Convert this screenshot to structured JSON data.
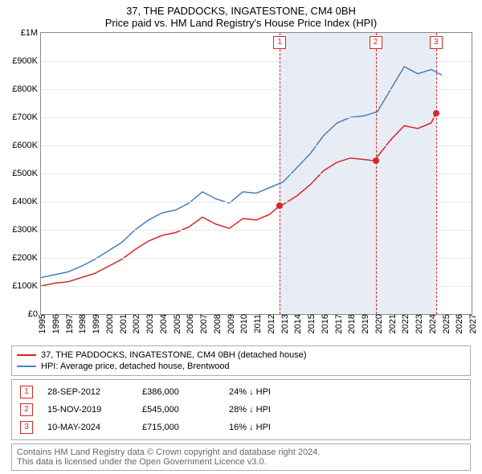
{
  "title": "37, THE PADDOCKS, INGATESTONE, CM4 0BH",
  "subtitle": "Price paid vs. HM Land Registry's House Price Index (HPI)",
  "chart": {
    "type": "line",
    "background_color": "#ffffff",
    "grid_color": "#e8e8e8",
    "border_color": "#888888",
    "shaded_region": {
      "from_year": 2012.74,
      "to_year": 2024.36,
      "color": "#e8edf5"
    },
    "x": {
      "min": 1995,
      "max": 2027,
      "ticks": [
        1995,
        1996,
        1997,
        1998,
        1999,
        2000,
        2001,
        2002,
        2003,
        2004,
        2005,
        2006,
        2007,
        2008,
        2009,
        2010,
        2011,
        2012,
        2013,
        2014,
        2015,
        2016,
        2017,
        2018,
        2019,
        2020,
        2021,
        2022,
        2023,
        2024,
        2025,
        2026,
        2027
      ],
      "fontsize": 11
    },
    "y": {
      "min": 0,
      "max": 1000000,
      "ticks": [
        0,
        100000,
        200000,
        300000,
        400000,
        500000,
        600000,
        700000,
        800000,
        900000,
        1000000
      ],
      "tick_labels": [
        "£0",
        "£100K",
        "£200K",
        "£300K",
        "£400K",
        "£500K",
        "£600K",
        "£700K",
        "£800K",
        "£900K",
        "£1M"
      ],
      "fontsize": 11
    },
    "series": {
      "property": {
        "label": "37, THE PADDOCKS, INGATESTONE, CM4 0BH (detached house)",
        "color": "#d62728",
        "line_width": 1.5,
        "data": [
          [
            1995,
            100000
          ],
          [
            1996,
            110000
          ],
          [
            1997,
            115000
          ],
          [
            1998,
            130000
          ],
          [
            1999,
            145000
          ],
          [
            2000,
            170000
          ],
          [
            2001,
            195000
          ],
          [
            2002,
            230000
          ],
          [
            2003,
            260000
          ],
          [
            2004,
            280000
          ],
          [
            2005,
            290000
          ],
          [
            2006,
            310000
          ],
          [
            2007,
            345000
          ],
          [
            2008,
            320000
          ],
          [
            2009,
            305000
          ],
          [
            2010,
            340000
          ],
          [
            2011,
            335000
          ],
          [
            2012,
            355000
          ],
          [
            2012.74,
            386000
          ],
          [
            2013,
            390000
          ],
          [
            2014,
            420000
          ],
          [
            2015,
            460000
          ],
          [
            2016,
            510000
          ],
          [
            2017,
            540000
          ],
          [
            2018,
            555000
          ],
          [
            2019,
            550000
          ],
          [
            2019.87,
            545000
          ],
          [
            2020,
            560000
          ],
          [
            2021,
            620000
          ],
          [
            2022,
            670000
          ],
          [
            2023,
            660000
          ],
          [
            2024,
            680000
          ],
          [
            2024.36,
            715000
          ]
        ]
      },
      "hpi": {
        "label": "HPI: Average price, detached house, Brentwood",
        "color": "#4a7ebb",
        "line_width": 1.5,
        "data": [
          [
            1995,
            130000
          ],
          [
            1996,
            140000
          ],
          [
            1997,
            150000
          ],
          [
            1998,
            170000
          ],
          [
            1999,
            195000
          ],
          [
            2000,
            225000
          ],
          [
            2001,
            255000
          ],
          [
            2002,
            300000
          ],
          [
            2003,
            335000
          ],
          [
            2004,
            360000
          ],
          [
            2005,
            370000
          ],
          [
            2006,
            395000
          ],
          [
            2007,
            435000
          ],
          [
            2008,
            410000
          ],
          [
            2009,
            395000
          ],
          [
            2010,
            435000
          ],
          [
            2011,
            430000
          ],
          [
            2012,
            450000
          ],
          [
            2013,
            470000
          ],
          [
            2014,
            520000
          ],
          [
            2015,
            570000
          ],
          [
            2016,
            635000
          ],
          [
            2017,
            680000
          ],
          [
            2018,
            700000
          ],
          [
            2019,
            705000
          ],
          [
            2020,
            720000
          ],
          [
            2021,
            800000
          ],
          [
            2022,
            880000
          ],
          [
            2023,
            855000
          ],
          [
            2024,
            870000
          ],
          [
            2024.8,
            850000
          ]
        ]
      }
    },
    "markers": [
      {
        "num": "1",
        "year": 2012.74,
        "value": 386000,
        "color": "#d62728"
      },
      {
        "num": "2",
        "year": 2019.87,
        "value": 545000,
        "color": "#d62728"
      },
      {
        "num": "3",
        "year": 2024.36,
        "value": 715000,
        "color": "#d62728"
      }
    ]
  },
  "sales": [
    {
      "num": "1",
      "date": "28-SEP-2012",
      "price": "£386,000",
      "hpi_diff": "24% ↓ HPI",
      "color": "#d62728"
    },
    {
      "num": "2",
      "date": "15-NOV-2019",
      "price": "£545,000",
      "hpi_diff": "28% ↓ HPI",
      "color": "#d62728"
    },
    {
      "num": "3",
      "date": "10-MAY-2024",
      "price": "£715,000",
      "hpi_diff": "16% ↓ HPI",
      "color": "#d62728"
    }
  ],
  "footer": {
    "line1": "Contains HM Land Registry data © Crown copyright and database right 2024.",
    "line2": "This data is licensed under the Open Government Licence v3.0."
  }
}
